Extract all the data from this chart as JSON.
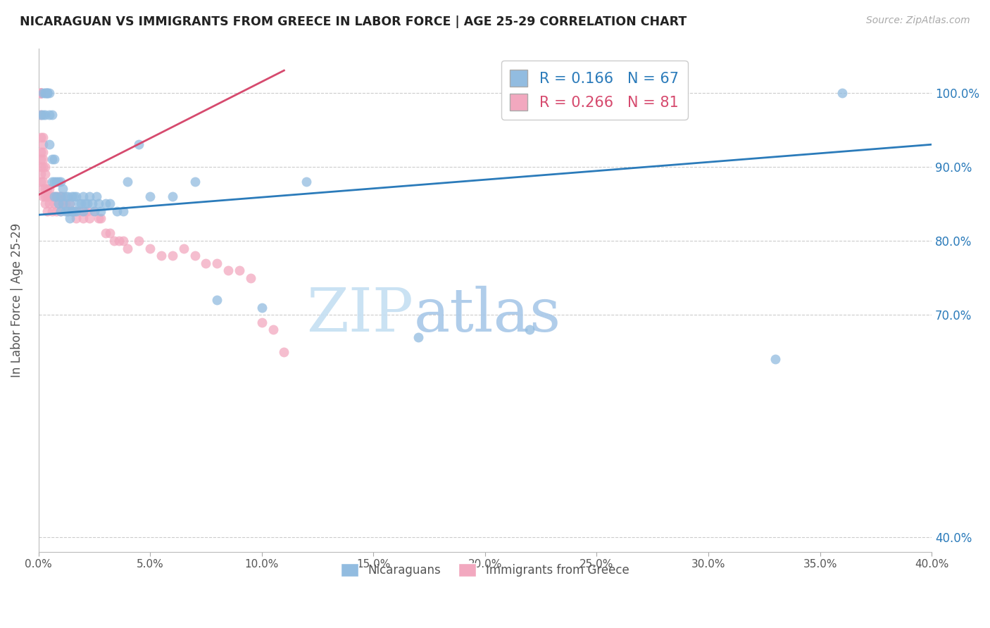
{
  "title": "NICARAGUAN VS IMMIGRANTS FROM GREECE IN LABOR FORCE | AGE 25-29 CORRELATION CHART",
  "source": "Source: ZipAtlas.com",
  "ylabel": "In Labor Force | Age 25-29",
  "yticks": [
    0.4,
    0.7,
    0.8,
    0.9,
    1.0
  ],
  "ytick_labels": [
    "40.0%",
    "70.0%",
    "80.0%",
    "90.0%",
    "100.0%"
  ],
  "xmin": 0.0,
  "xmax": 0.4,
  "ymin": 0.38,
  "ymax": 1.06,
  "watermark_zip": "ZIP",
  "watermark_atlas": "atlas",
  "blue_R": "0.166",
  "blue_N": "67",
  "pink_R": "0.266",
  "pink_N": "81",
  "blue_color": "#92bce0",
  "pink_color": "#f2a8bf",
  "blue_line_color": "#2b7bba",
  "pink_line_color": "#d64a6e",
  "legend_label_blue": "Nicaraguans",
  "legend_label_pink": "Immigrants from Greece",
  "blue_scatter_x": [
    0.001,
    0.002,
    0.002,
    0.003,
    0.003,
    0.003,
    0.004,
    0.004,
    0.004,
    0.005,
    0.005,
    0.005,
    0.006,
    0.006,
    0.006,
    0.007,
    0.007,
    0.007,
    0.008,
    0.008,
    0.009,
    0.009,
    0.01,
    0.01,
    0.01,
    0.011,
    0.011,
    0.012,
    0.012,
    0.013,
    0.013,
    0.014,
    0.014,
    0.015,
    0.015,
    0.016,
    0.016,
    0.017,
    0.017,
    0.018,
    0.019,
    0.02,
    0.02,
    0.021,
    0.022,
    0.023,
    0.024,
    0.025,
    0.026,
    0.027,
    0.028,
    0.03,
    0.032,
    0.035,
    0.038,
    0.04,
    0.045,
    0.05,
    0.06,
    0.07,
    0.08,
    0.1,
    0.12,
    0.17,
    0.22,
    0.33,
    0.36
  ],
  "blue_scatter_y": [
    0.97,
    0.97,
    1.0,
    0.97,
    1.0,
    1.0,
    1.0,
    1.0,
    1.0,
    0.93,
    0.97,
    1.0,
    0.88,
    0.91,
    0.97,
    0.86,
    0.88,
    0.91,
    0.86,
    0.88,
    0.85,
    0.88,
    0.84,
    0.86,
    0.88,
    0.85,
    0.87,
    0.84,
    0.86,
    0.84,
    0.86,
    0.83,
    0.85,
    0.84,
    0.86,
    0.84,
    0.86,
    0.84,
    0.86,
    0.85,
    0.85,
    0.84,
    0.86,
    0.85,
    0.85,
    0.86,
    0.85,
    0.84,
    0.86,
    0.85,
    0.84,
    0.85,
    0.85,
    0.84,
    0.84,
    0.88,
    0.93,
    0.86,
    0.86,
    0.88,
    0.72,
    0.71,
    0.88,
    0.67,
    0.68,
    0.64,
    1.0
  ],
  "pink_scatter_x": [
    0.001,
    0.001,
    0.001,
    0.001,
    0.001,
    0.001,
    0.001,
    0.001,
    0.001,
    0.001,
    0.001,
    0.001,
    0.001,
    0.001,
    0.001,
    0.002,
    0.002,
    0.002,
    0.002,
    0.002,
    0.002,
    0.002,
    0.002,
    0.003,
    0.003,
    0.003,
    0.003,
    0.003,
    0.004,
    0.004,
    0.004,
    0.005,
    0.005,
    0.005,
    0.006,
    0.006,
    0.007,
    0.007,
    0.008,
    0.008,
    0.009,
    0.009,
    0.01,
    0.01,
    0.011,
    0.011,
    0.012,
    0.013,
    0.014,
    0.015,
    0.016,
    0.017,
    0.018,
    0.019,
    0.02,
    0.021,
    0.022,
    0.023,
    0.025,
    0.027,
    0.028,
    0.03,
    0.032,
    0.034,
    0.036,
    0.038,
    0.04,
    0.045,
    0.05,
    0.055,
    0.06,
    0.065,
    0.07,
    0.075,
    0.08,
    0.085,
    0.09,
    0.095,
    0.1,
    0.105,
    0.11
  ],
  "pink_scatter_y": [
    1.0,
    1.0,
    1.0,
    1.0,
    1.0,
    1.0,
    1.0,
    1.0,
    0.97,
    0.94,
    0.92,
    0.91,
    0.9,
    0.89,
    0.88,
    0.94,
    0.93,
    0.92,
    0.91,
    0.9,
    0.88,
    0.87,
    0.86,
    0.9,
    0.89,
    0.87,
    0.86,
    0.85,
    0.87,
    0.86,
    0.84,
    0.87,
    0.86,
    0.85,
    0.86,
    0.84,
    0.86,
    0.85,
    0.86,
    0.84,
    0.86,
    0.85,
    0.86,
    0.84,
    0.85,
    0.86,
    0.85,
    0.84,
    0.85,
    0.84,
    0.84,
    0.83,
    0.84,
    0.84,
    0.83,
    0.84,
    0.84,
    0.83,
    0.84,
    0.83,
    0.83,
    0.81,
    0.81,
    0.8,
    0.8,
    0.8,
    0.79,
    0.8,
    0.79,
    0.78,
    0.78,
    0.79,
    0.78,
    0.77,
    0.77,
    0.76,
    0.76,
    0.75,
    0.69,
    0.68,
    0.65
  ],
  "blue_line_x": [
    0.0,
    0.4
  ],
  "blue_line_y": [
    0.835,
    0.93
  ],
  "pink_line_x": [
    0.0,
    0.11
  ],
  "pink_line_y": [
    0.862,
    1.03
  ]
}
